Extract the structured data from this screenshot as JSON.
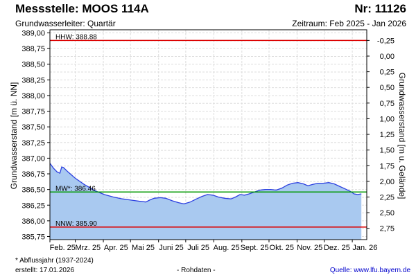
{
  "header": {
    "title": "Messstelle: MOOS 114A",
    "nr": "Nr: 11126",
    "subtitle": "Grundwasserleiter: Quartär",
    "zeitraum": "Zeitraum: Feb 2025 - Jan 2026"
  },
  "footer": {
    "footnote": "* Abflussjahr (1937-2024)",
    "created": "erstellt:  17.01.2026",
    "rohdaten": "- Rohdaten -",
    "source": "Quelle:  www.lfu.bayern.de"
  },
  "colors": {
    "fill": "#a9c9f0",
    "line": "#2b3fe0",
    "hhw": "#dd0000",
    "nnw": "#dd0000",
    "mw": "#009900",
    "grid": "#dddddd"
  },
  "chart_data": {
    "type": "area",
    "xlabel": "",
    "ylabel": "Grundwasserstand [m ü. NN]",
    "ylabel_right": "Grundwasserstand [m u. Gelände]",
    "ylim": [
      385.7,
      389.05
    ],
    "yticks": [
      "389,00",
      "388,75",
      "388,50",
      "388,25",
      "388,00",
      "387,75",
      "387,50",
      "387,25",
      "387,00",
      "386,75",
      "386,50",
      "386,25",
      "386,00",
      "385,75"
    ],
    "right_ticks": [
      "-0,25",
      "0,00",
      "0,25",
      "0,50",
      "0,75",
      "1,00",
      "1,25",
      "1,50",
      "1,75",
      "2,00",
      "2,25",
      "2,50",
      "2,75"
    ],
    "x_tick_labels": [
      "Feb. 25",
      "Mrz. 25",
      "Apr. 25",
      "Mai 25",
      "Juni 25",
      "Juli 25",
      "Aug. 25",
      "Sept. 25",
      "Okt. 25",
      "Nov. 25",
      "Dez. 25",
      "Jan. 26"
    ],
    "x_range_days": 350,
    "reference_lines": [
      {
        "name": "hhw",
        "label": "HHW: 388.88",
        "value": 388.88
      },
      {
        "name": "mw",
        "label": "MW*: 386.46",
        "value": 386.46
      },
      {
        "name": "nnw",
        "label": "NNW: 385.90",
        "value": 385.9
      }
    ],
    "grid": true,
    "series": [
      {
        "values": [
          [
            0,
            386.92
          ],
          [
            4,
            386.84
          ],
          [
            8,
            386.78
          ],
          [
            11,
            386.76
          ],
          [
            13,
            386.86
          ],
          [
            15,
            386.85
          ],
          [
            20,
            386.78
          ],
          [
            28,
            386.68
          ],
          [
            38,
            386.58
          ],
          [
            50,
            386.48
          ],
          [
            60,
            386.42
          ],
          [
            70,
            386.38
          ],
          [
            80,
            386.35
          ],
          [
            90,
            386.33
          ],
          [
            100,
            386.31
          ],
          [
            106,
            386.3
          ],
          [
            110,
            386.33
          ],
          [
            115,
            386.36
          ],
          [
            122,
            386.37
          ],
          [
            128,
            386.36
          ],
          [
            135,
            386.32
          ],
          [
            142,
            386.29
          ],
          [
            148,
            386.27
          ],
          [
            155,
            386.3
          ],
          [
            162,
            386.35
          ],
          [
            168,
            386.39
          ],
          [
            174,
            386.42
          ],
          [
            180,
            386.41
          ],
          [
            186,
            386.38
          ],
          [
            193,
            386.36
          ],
          [
            200,
            386.35
          ],
          [
            205,
            386.38
          ],
          [
            210,
            386.42
          ],
          [
            215,
            386.41
          ],
          [
            220,
            386.43
          ],
          [
            226,
            386.46
          ],
          [
            232,
            386.49
          ],
          [
            238,
            386.5
          ],
          [
            244,
            386.5
          ],
          [
            250,
            386.49
          ],
          [
            256,
            386.52
          ],
          [
            262,
            386.57
          ],
          [
            268,
            386.6
          ],
          [
            274,
            386.61
          ],
          [
            280,
            386.59
          ],
          [
            285,
            386.56
          ],
          [
            290,
            386.58
          ],
          [
            296,
            386.6
          ],
          [
            302,
            386.6
          ],
          [
            308,
            386.61
          ],
          [
            314,
            386.59
          ],
          [
            320,
            386.55
          ],
          [
            326,
            386.51
          ],
          [
            332,
            386.47
          ],
          [
            336,
            386.43
          ],
          [
            340,
            386.42
          ],
          [
            344,
            386.43
          ]
        ]
      }
    ]
  }
}
